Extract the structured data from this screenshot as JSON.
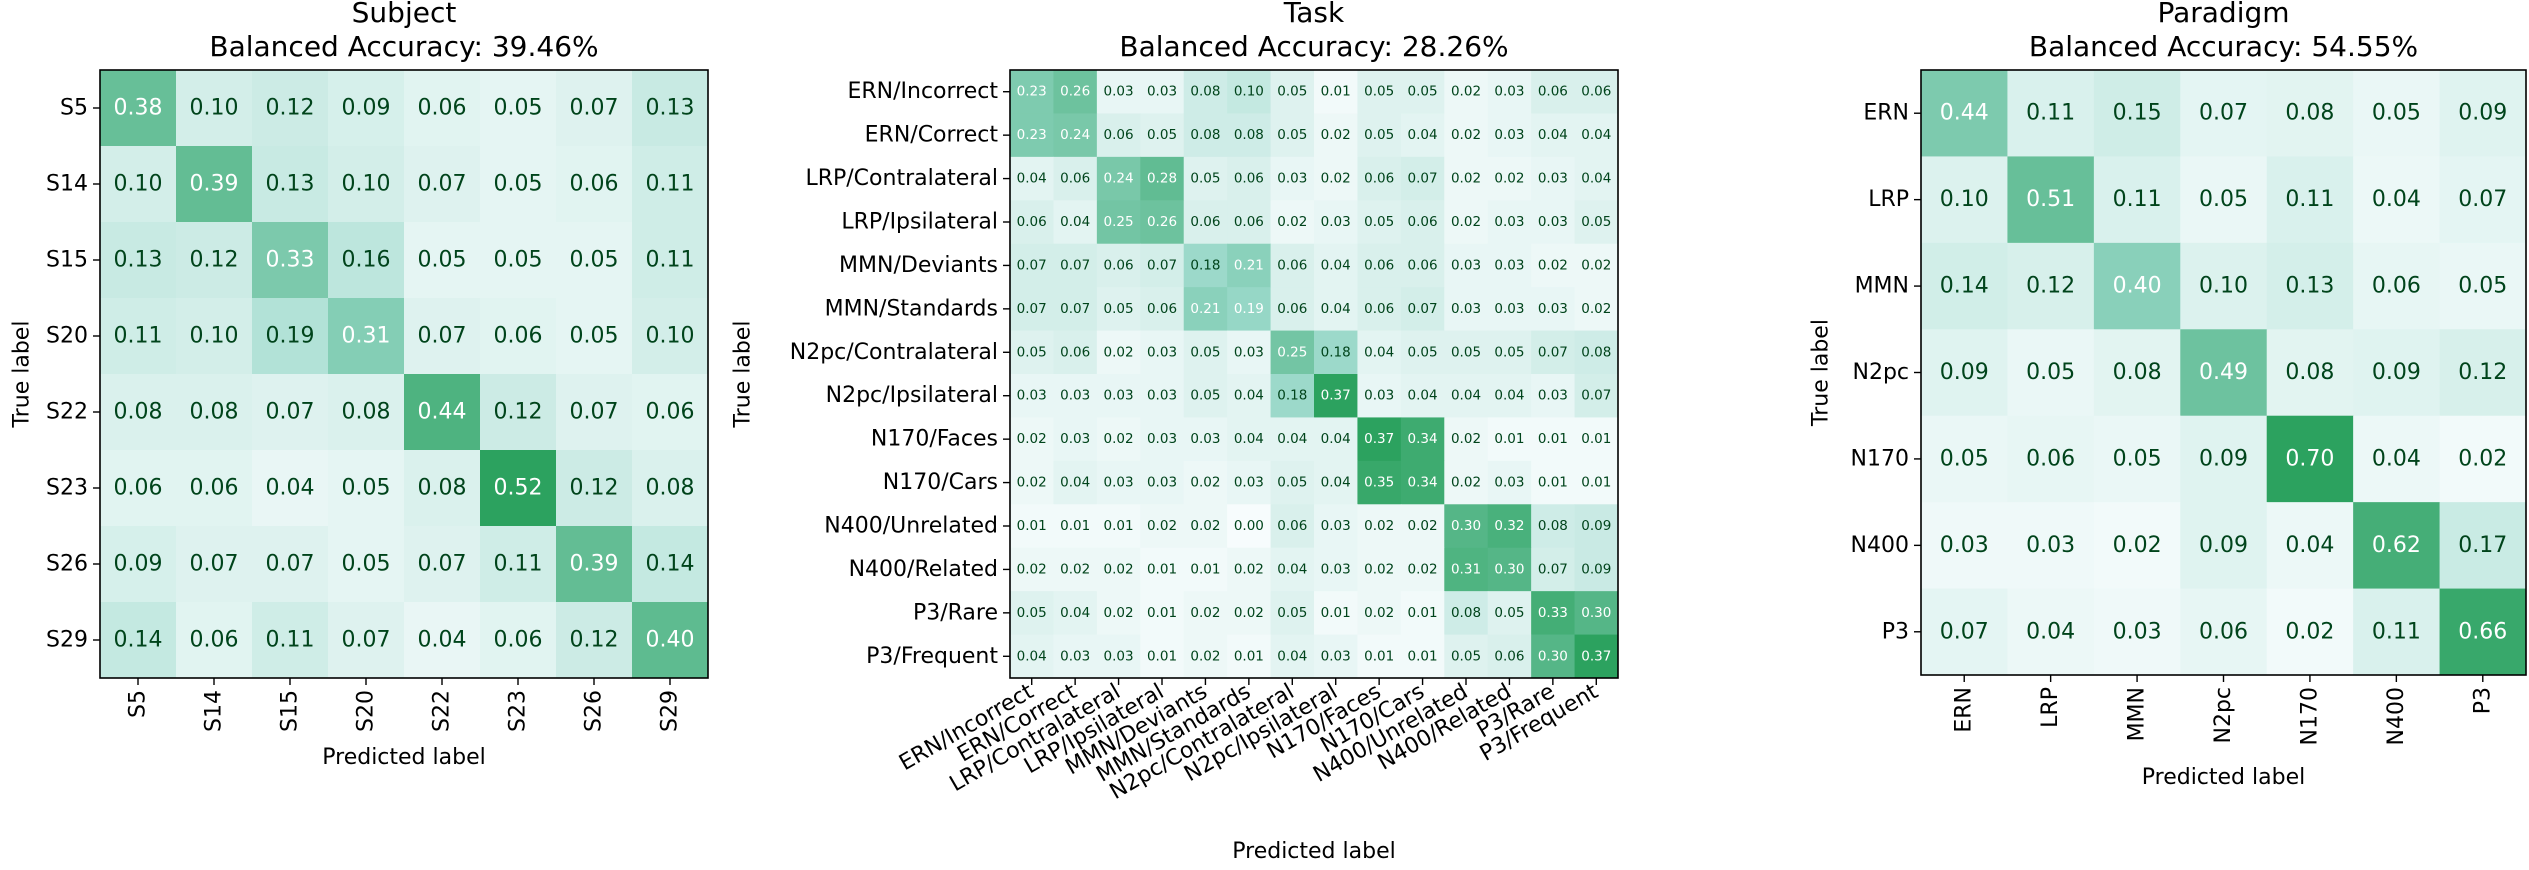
{
  "chart_data": [
    {
      "type": "heatmap",
      "title": "Subject",
      "subtitle": "Balanced Accuracy: 39.46%",
      "xlabel": "Predicted label",
      "ylabel": "True label",
      "labels": [
        "S5",
        "S14",
        "S15",
        "S20",
        "S22",
        "S23",
        "S26",
        "S29"
      ],
      "matrix": [
        [
          0.38,
          0.1,
          0.12,
          0.09,
          0.06,
          0.05,
          0.07,
          0.13
        ],
        [
          0.1,
          0.39,
          0.13,
          0.1,
          0.07,
          0.05,
          0.06,
          0.11
        ],
        [
          0.13,
          0.12,
          0.33,
          0.16,
          0.05,
          0.05,
          0.05,
          0.11
        ],
        [
          0.11,
          0.1,
          0.19,
          0.31,
          0.07,
          0.06,
          0.05,
          0.1
        ],
        [
          0.08,
          0.08,
          0.07,
          0.08,
          0.44,
          0.12,
          0.07,
          0.06
        ],
        [
          0.06,
          0.06,
          0.04,
          0.05,
          0.08,
          0.52,
          0.12,
          0.08
        ],
        [
          0.09,
          0.07,
          0.07,
          0.05,
          0.07,
          0.11,
          0.39,
          0.14
        ],
        [
          0.14,
          0.06,
          0.11,
          0.07,
          0.04,
          0.06,
          0.12,
          0.4
        ]
      ]
    },
    {
      "type": "heatmap",
      "title": "Task",
      "subtitle": "Balanced Accuracy: 28.26%",
      "xlabel": "Predicted label",
      "ylabel": "True label",
      "labels": [
        "ERN/Incorrect",
        "ERN/Correct",
        "LRP/Contralateral",
        "LRP/Ipsilateral",
        "MMN/Deviants",
        "MMN/Standards",
        "N2pc/Contralateral",
        "N2pc/Ipsilateral",
        "N170/Faces",
        "N170/Cars",
        "N400/Unrelated",
        "N400/Related",
        "P3/Rare",
        "P3/Frequent"
      ],
      "matrix": [
        [
          0.23,
          0.26,
          0.03,
          0.03,
          0.08,
          0.1,
          0.05,
          0.01,
          0.05,
          0.05,
          0.02,
          0.03,
          0.06,
          0.06
        ],
        [
          0.23,
          0.24,
          0.06,
          0.05,
          0.08,
          0.08,
          0.05,
          0.02,
          0.05,
          0.04,
          0.02,
          0.03,
          0.04,
          0.04
        ],
        [
          0.04,
          0.06,
          0.24,
          0.28,
          0.05,
          0.06,
          0.03,
          0.02,
          0.06,
          0.07,
          0.02,
          0.02,
          0.03,
          0.04
        ],
        [
          0.06,
          0.04,
          0.25,
          0.26,
          0.06,
          0.06,
          0.02,
          0.03,
          0.05,
          0.06,
          0.02,
          0.03,
          0.03,
          0.05
        ],
        [
          0.07,
          0.07,
          0.06,
          0.07,
          0.18,
          0.21,
          0.06,
          0.04,
          0.06,
          0.06,
          0.03,
          0.03,
          0.02,
          0.02
        ],
        [
          0.07,
          0.07,
          0.05,
          0.06,
          0.21,
          0.19,
          0.06,
          0.04,
          0.06,
          0.07,
          0.03,
          0.03,
          0.03,
          0.02
        ],
        [
          0.05,
          0.06,
          0.02,
          0.03,
          0.05,
          0.03,
          0.25,
          0.18,
          0.04,
          0.05,
          0.05,
          0.05,
          0.07,
          0.08
        ],
        [
          0.03,
          0.03,
          0.03,
          0.03,
          0.05,
          0.04,
          0.18,
          0.37,
          0.03,
          0.04,
          0.04,
          0.04,
          0.03,
          0.07
        ],
        [
          0.02,
          0.03,
          0.02,
          0.03,
          0.03,
          0.04,
          0.04,
          0.04,
          0.37,
          0.34,
          0.02,
          0.01,
          0.01,
          0.01
        ],
        [
          0.02,
          0.04,
          0.03,
          0.03,
          0.02,
          0.03,
          0.05,
          0.04,
          0.35,
          0.34,
          0.02,
          0.03,
          0.01,
          0.01
        ],
        [
          0.01,
          0.01,
          0.01,
          0.02,
          0.02,
          0.0,
          0.06,
          0.03,
          0.02,
          0.02,
          0.3,
          0.32,
          0.08,
          0.09
        ],
        [
          0.02,
          0.02,
          0.02,
          0.01,
          0.01,
          0.02,
          0.04,
          0.03,
          0.02,
          0.02,
          0.31,
          0.3,
          0.07,
          0.09
        ],
        [
          0.05,
          0.04,
          0.02,
          0.01,
          0.02,
          0.02,
          0.05,
          0.01,
          0.02,
          0.01,
          0.08,
          0.05,
          0.33,
          0.3
        ],
        [
          0.04,
          0.03,
          0.03,
          0.01,
          0.02,
          0.01,
          0.04,
          0.03,
          0.01,
          0.01,
          0.05,
          0.06,
          0.3,
          0.37
        ]
      ]
    },
    {
      "type": "heatmap",
      "title": "Paradigm",
      "subtitle": "Balanced Accuracy: 54.55%",
      "xlabel": "Predicted label",
      "ylabel": "True label",
      "labels": [
        "ERN",
        "LRP",
        "MMN",
        "N2pc",
        "N170",
        "N400",
        "P3"
      ],
      "matrix": [
        [
          0.44,
          0.11,
          0.15,
          0.07,
          0.08,
          0.05,
          0.09
        ],
        [
          0.1,
          0.51,
          0.11,
          0.05,
          0.11,
          0.04,
          0.07
        ],
        [
          0.14,
          0.12,
          0.4,
          0.1,
          0.13,
          0.06,
          0.05
        ],
        [
          0.09,
          0.05,
          0.08,
          0.49,
          0.08,
          0.09,
          0.12
        ],
        [
          0.05,
          0.06,
          0.05,
          0.09,
          0.7,
          0.04,
          0.02
        ],
        [
          0.03,
          0.03,
          0.02,
          0.09,
          0.04,
          0.62,
          0.17
        ],
        [
          0.07,
          0.04,
          0.03,
          0.06,
          0.02,
          0.11,
          0.66
        ]
      ]
    }
  ],
  "colors": {
    "low": "#f7fcfd",
    "mid": "#99d8c9",
    "high": "#2ca25f",
    "dark_text": "#00441b",
    "light_text": "#ffffff",
    "axis": "#000000"
  }
}
